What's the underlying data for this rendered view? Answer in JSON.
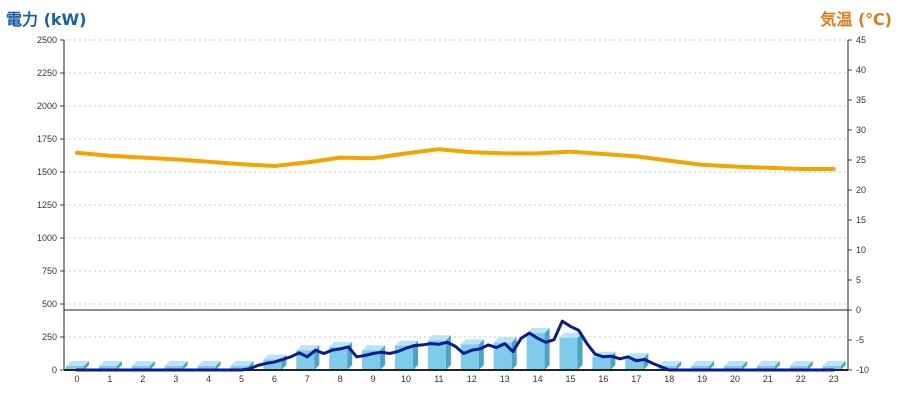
{
  "chart_data": {
    "type": "bar",
    "x": [
      "0",
      "1",
      "2",
      "3",
      "4",
      "5",
      "6",
      "7",
      "8",
      "9",
      "10",
      "11",
      "12",
      "13",
      "14",
      "15",
      "16",
      "17",
      "18",
      "19",
      "20",
      "21",
      "22",
      "23"
    ],
    "y_left": {
      "label": "電力 (kW)",
      "ticks": [
        "0",
        "250",
        "500",
        "750",
        "1000",
        "1250",
        "1500",
        "1750",
        "2000",
        "2250",
        "2500"
      ],
      "range": [
        0,
        2500
      ]
    },
    "y_right": {
      "label": "気温 (℃)",
      "ticks": [
        "-10",
        "-5",
        "0",
        "5",
        "10",
        "15",
        "20",
        "25",
        "30",
        "35",
        "40",
        "45"
      ],
      "range": [
        -10,
        45
      ]
    },
    "grid": true,
    "series": [
      {
        "kind": "bar",
        "axis": "left",
        "color": "#7ecbea",
        "values": [
          30,
          30,
          30,
          30,
          30,
          30,
          80,
          150,
          175,
          150,
          185,
          225,
          195,
          210,
          280,
          245,
          100,
          90,
          30,
          30,
          30,
          30,
          30,
          30
        ]
      },
      {
        "kind": "line",
        "axis": "left",
        "color": "#0c1c8c",
        "x": [
          0,
          0.5,
          1,
          1.5,
          2,
          2.5,
          3,
          3.5,
          4,
          4.5,
          5,
          5.25,
          5.5,
          5.75,
          6,
          6.25,
          6.5,
          6.75,
          7,
          7.25,
          7.5,
          7.75,
          8,
          8.25,
          8.5,
          8.75,
          9,
          9.25,
          9.5,
          9.75,
          10,
          10.25,
          10.5,
          10.75,
          11,
          11.25,
          11.5,
          11.75,
          12,
          12.25,
          12.5,
          12.75,
          13,
          13.25,
          13.5,
          13.75,
          14,
          14.25,
          14.5,
          14.75,
          15,
          15.25,
          15.5,
          15.75,
          16,
          16.25,
          16.5,
          16.75,
          17,
          17.25,
          17.5,
          18,
          18.5,
          19,
          19.5,
          20,
          20.5,
          21,
          21.5,
          22,
          22.5,
          23
        ],
        "values": [
          0,
          0,
          0,
          0,
          0,
          0,
          0,
          0,
          0,
          0,
          0,
          10,
          35,
          50,
          60,
          80,
          100,
          130,
          100,
          150,
          125,
          150,
          160,
          175,
          100,
          110,
          125,
          135,
          125,
          140,
          165,
          185,
          190,
          200,
          195,
          210,
          180,
          125,
          150,
          160,
          190,
          170,
          200,
          140,
          240,
          280,
          240,
          210,
          230,
          370,
          330,
          300,
          200,
          120,
          100,
          105,
          85,
          100,
          70,
          80,
          50,
          0,
          0,
          0,
          0,
          0,
          0,
          0,
          0,
          0,
          0,
          0
        ]
      },
      {
        "kind": "line",
        "axis": "right",
        "color": "#f5a300",
        "values": [
          26.2,
          25.7,
          25.4,
          25.1,
          24.7,
          24.3,
          24.0,
          24.6,
          25.4,
          25.3,
          26.1,
          26.8,
          26.3,
          26.1,
          26.1,
          26.4,
          26.0,
          25.6,
          24.9,
          24.2,
          23.9,
          23.7,
          23.5,
          23.5
        ]
      }
    ]
  }
}
